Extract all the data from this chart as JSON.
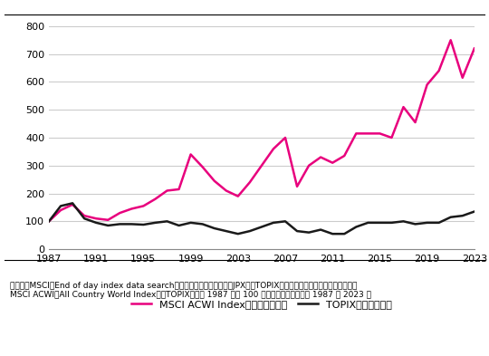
{
  "years": [
    1987,
    1988,
    1989,
    1990,
    1991,
    1992,
    1993,
    1994,
    1995,
    1996,
    1997,
    1998,
    1999,
    2000,
    2001,
    2002,
    2003,
    2004,
    2005,
    2006,
    2007,
    2008,
    2009,
    2010,
    2011,
    2012,
    2013,
    2014,
    2015,
    2016,
    2017,
    2018,
    2019,
    2020,
    2021,
    2022,
    2023
  ],
  "msci": [
    100,
    140,
    160,
    120,
    110,
    105,
    130,
    145,
    155,
    180,
    210,
    215,
    340,
    295,
    245,
    210,
    190,
    240,
    300,
    360,
    400,
    225,
    300,
    330,
    310,
    335,
    415,
    415,
    415,
    400,
    510,
    455,
    590,
    640,
    750,
    615,
    720
  ],
  "topix": [
    100,
    155,
    165,
    110,
    95,
    85,
    90,
    90,
    88,
    95,
    100,
    85,
    95,
    90,
    75,
    65,
    55,
    65,
    80,
    95,
    100,
    65,
    60,
    70,
    55,
    55,
    80,
    95,
    95,
    95,
    100,
    90,
    95,
    95,
    115,
    120,
    135
  ],
  "msci_color": "#e8007d",
  "topix_color": "#1a1a1a",
  "msci_label": "MSCI ACWI Index（全世界株式）",
  "topix_label": "TOPIX（国内株式）",
  "yticks": [
    0,
    100,
    200,
    300,
    400,
    500,
    600,
    700,
    800
  ],
  "xticks": [
    1987,
    1991,
    1995,
    1999,
    2003,
    2007,
    2011,
    2015,
    2019,
    2023
  ],
  "ylim": [
    0,
    830
  ],
  "xlim": [
    1987,
    2023
  ],
  "caption_line1": "（出所）MSCI「End of day index data search」、日本取引所グループ（JPX）「TOPIX（東証株価指数）」より筆者作成。",
  "caption_line2": "MSCI ACWI（All Country World Index）、TOPIXともに 1987 年＝ 100 とした値。対象期間は 1987 ～ 2023 年",
  "background_color": "#ffffff",
  "grid_color": "#cccccc",
  "line_width": 1.8
}
